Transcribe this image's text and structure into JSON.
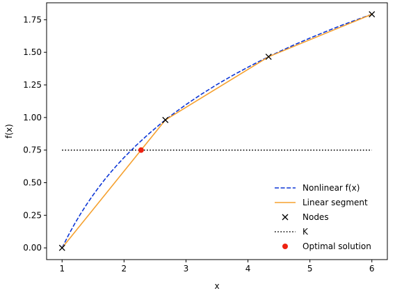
{
  "chart_data": {
    "type": "line",
    "xlabel": "x",
    "ylabel": "f(x)",
    "xlim": [
      0.75,
      6.25
    ],
    "ylim": [
      -0.09,
      1.88
    ],
    "xticks": [
      1,
      2,
      3,
      4,
      5,
      6
    ],
    "xtick_labels": [
      "1",
      "2",
      "3",
      "4",
      "5",
      "6"
    ],
    "yticks": [
      0.0,
      0.25,
      0.5,
      0.75,
      1.0,
      1.25,
      1.5,
      1.75
    ],
    "ytick_labels": [
      "0.00",
      "0.25",
      "0.50",
      "0.75",
      "1.00",
      "1.25",
      "1.50",
      "1.75"
    ],
    "grid": false,
    "legend_position": "lower-right",
    "series": [
      {
        "name": "Nonlinear f(x)",
        "style": "dashed",
        "color": "#0b35d6",
        "x": [
          1.0,
          1.1,
          1.2,
          1.3,
          1.4,
          1.5,
          1.6,
          1.7,
          1.8,
          1.9,
          2.0,
          2.2,
          2.4,
          2.6,
          2.8,
          3.0,
          3.25,
          3.5,
          3.75,
          4.0,
          4.25,
          4.5,
          4.75,
          5.0,
          5.25,
          5.5,
          5.75,
          6.0
        ],
        "y": [
          0.0,
          0.095,
          0.182,
          0.262,
          0.336,
          0.405,
          0.47,
          0.531,
          0.588,
          0.642,
          0.693,
          0.788,
          0.875,
          0.956,
          1.03,
          1.099,
          1.179,
          1.253,
          1.322,
          1.386,
          1.447,
          1.504,
          1.558,
          1.609,
          1.658,
          1.705,
          1.749,
          1.792
        ]
      },
      {
        "name": "Linear segment",
        "style": "solid",
        "color": "#f5a02e",
        "x": [
          1.0,
          2.667,
          4.333,
          6.0
        ],
        "y": [
          0.0,
          0.981,
          1.466,
          1.792
        ]
      },
      {
        "name": "Nodes",
        "style": "marker-x",
        "color": "#000000",
        "x": [
          1.0,
          2.667,
          4.333,
          6.0
        ],
        "y": [
          0.0,
          0.981,
          1.466,
          1.792
        ]
      },
      {
        "name": "K",
        "style": "dotted",
        "color": "#000000",
        "x": [
          1.0,
          6.0
        ],
        "y": [
          0.75,
          0.75
        ]
      },
      {
        "name": "Optimal solution",
        "style": "marker-dot",
        "color": "#ee2211",
        "x": [
          2.275
        ],
        "y": [
          0.75
        ]
      }
    ]
  }
}
